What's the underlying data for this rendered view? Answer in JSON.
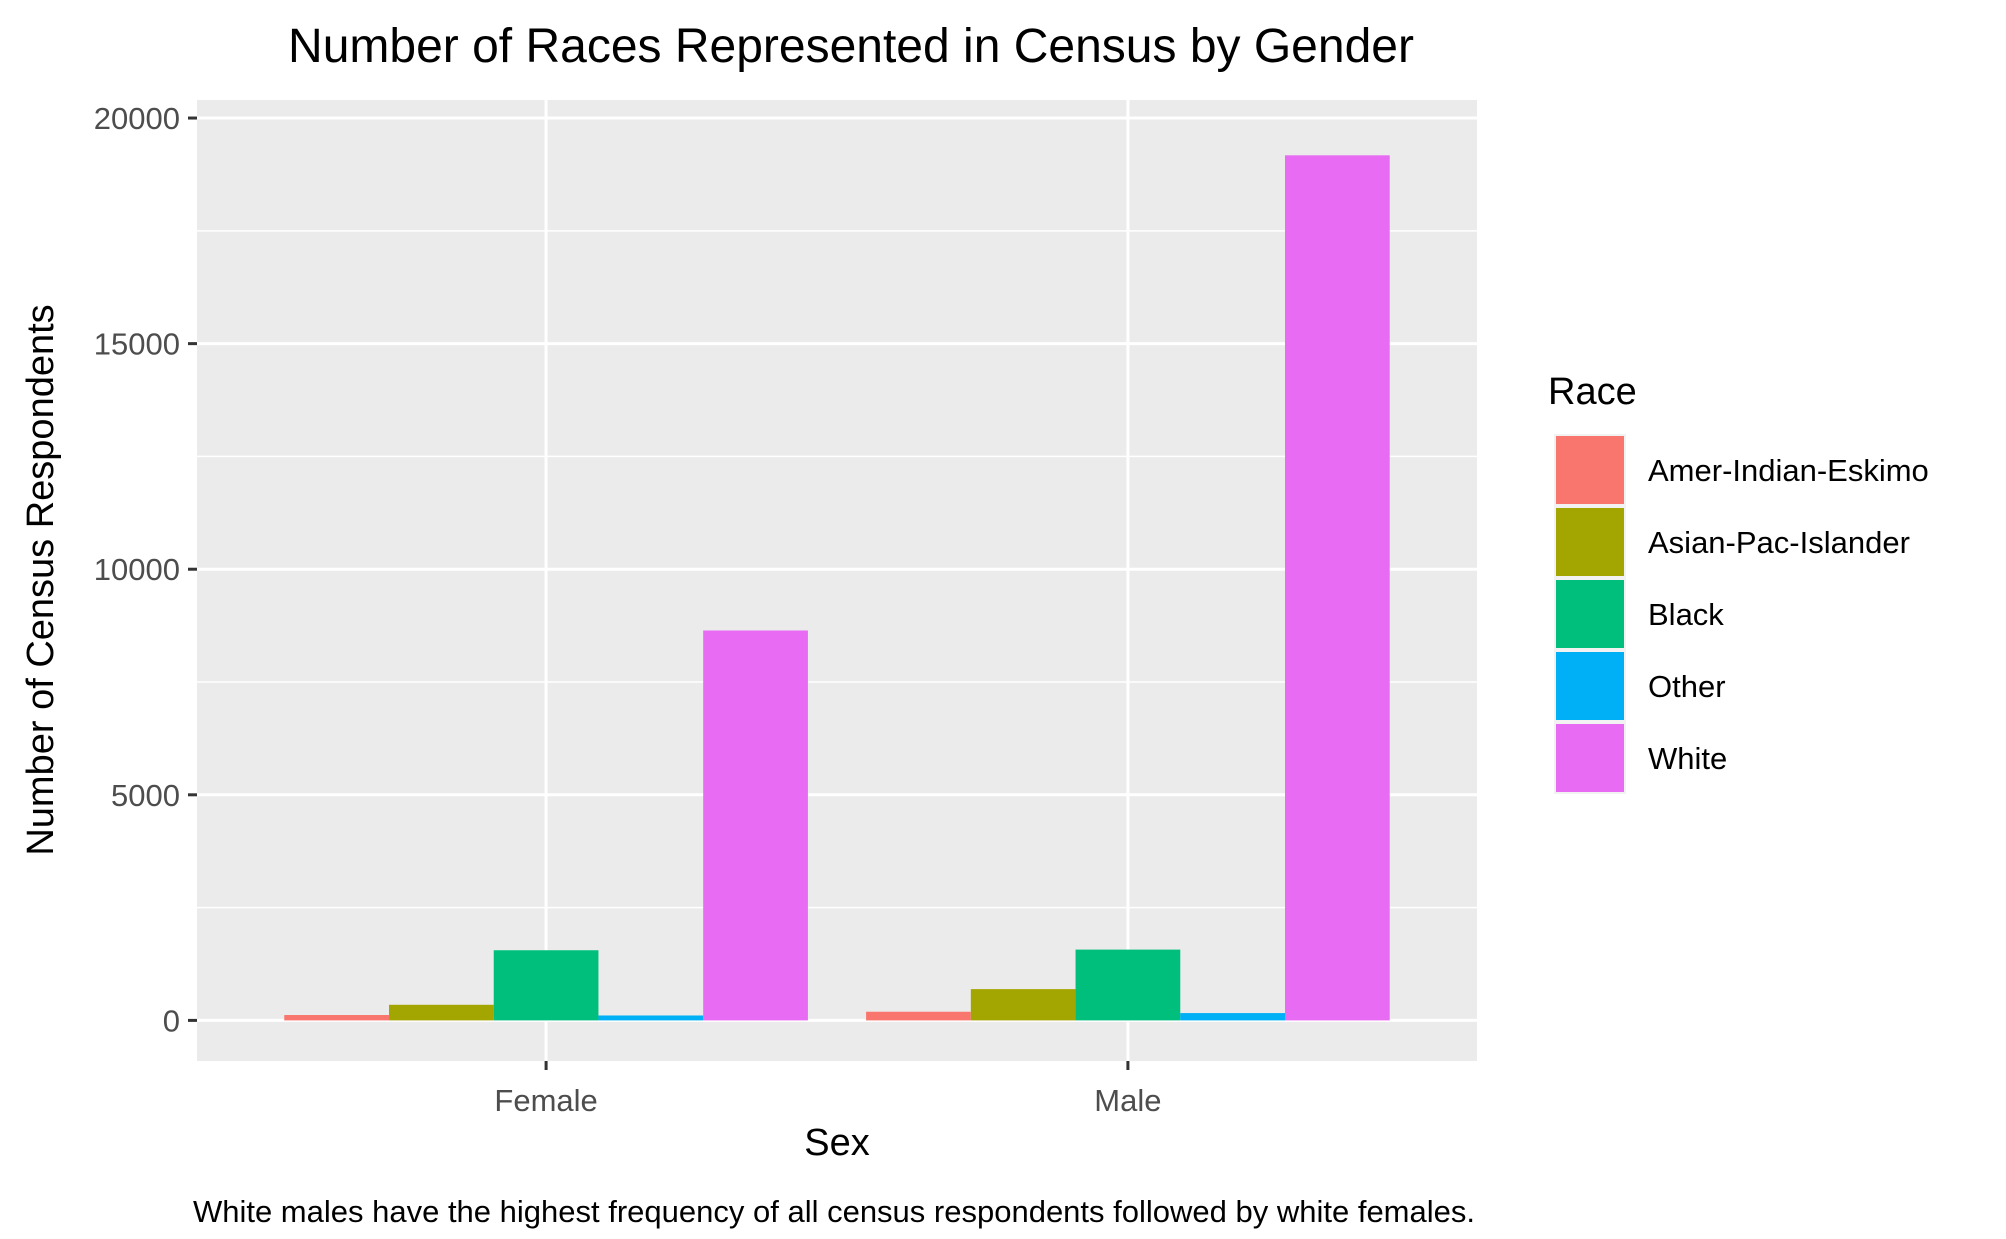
{
  "chart_data": {
    "type": "bar",
    "title": "Number of Races Represented in Census by Gender",
    "xlabel": "Sex",
    "ylabel": "Number of Census Respondents",
    "caption": "White males have the highest frequency of all census respondents followed by white females.",
    "categories": [
      "Female",
      "Male"
    ],
    "ylim": [
      -900,
      20400
    ],
    "yticks": [
      0,
      5000,
      10000,
      15000,
      20000
    ],
    "ytick_labels": [
      "0",
      "5000",
      "10000",
      "15000",
      "20000"
    ],
    "grid": true,
    "legend": {
      "title": "Race",
      "placement": "right"
    },
    "series": [
      {
        "name": "Amer-Indian-Eskimo",
        "color": "#F8766D",
        "values": [
          119,
          192
        ]
      },
      {
        "name": "Asian-Pac-Islander",
        "color": "#A3A500",
        "values": [
          346,
          693
        ]
      },
      {
        "name": "Black",
        "color": "#00BF7D",
        "values": [
          1555,
          1569
        ]
      },
      {
        "name": "Other",
        "color": "#00B0F6",
        "values": [
          109,
          162
        ]
      },
      {
        "name": "White",
        "color": "#E76BF3",
        "values": [
          8642,
          19174
        ]
      }
    ]
  }
}
